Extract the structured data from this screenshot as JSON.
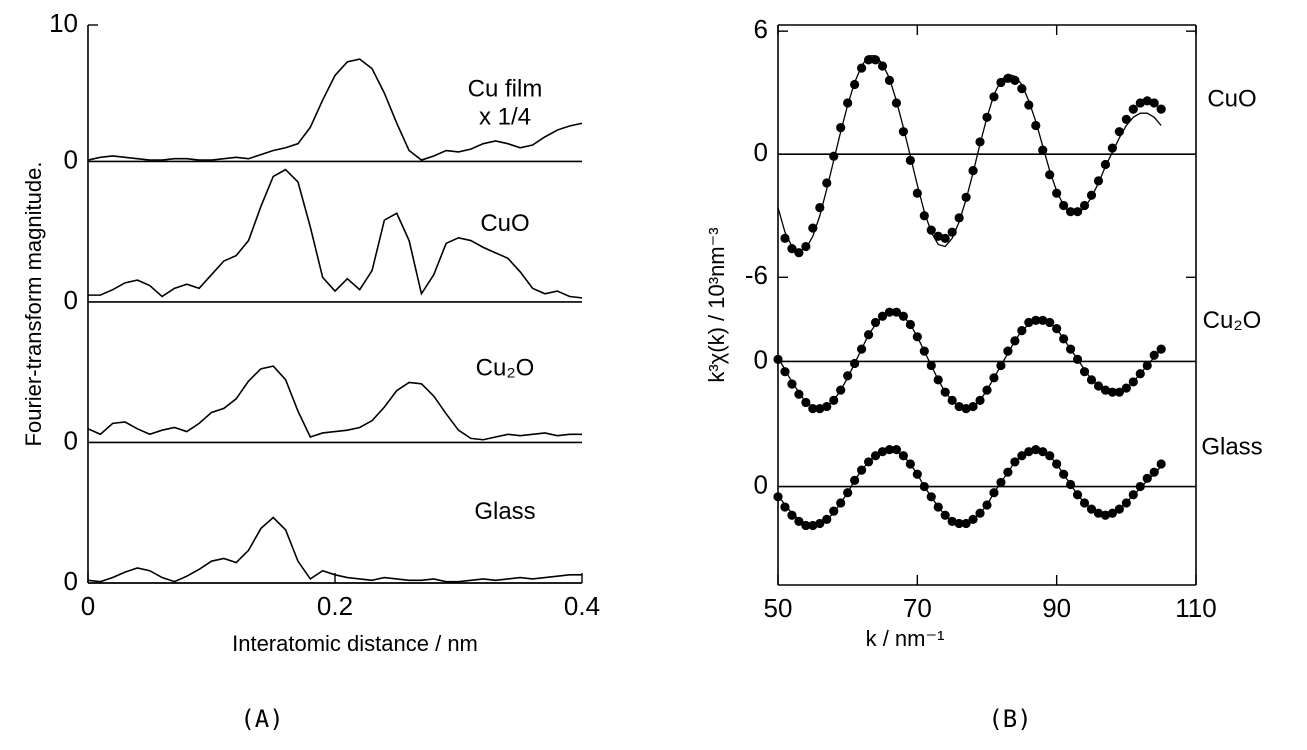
{
  "chart_data": [
    {
      "type": "line",
      "label": "(A)",
      "xlabel": "Interatomic distance / nm",
      "ylabel": "Fourier-transform magnitude.",
      "xlim": [
        0,
        0.4
      ],
      "xticks": [
        0,
        0.2,
        0.4
      ],
      "color": "#000000",
      "x": [
        0,
        0.01,
        0.02,
        0.03,
        0.04,
        0.05,
        0.06,
        0.07,
        0.08,
        0.09,
        0.1,
        0.11,
        0.12,
        0.13,
        0.14,
        0.15,
        0.16,
        0.17,
        0.18,
        0.19,
        0.2,
        0.21,
        0.22,
        0.23,
        0.24,
        0.25,
        0.26,
        0.27,
        0.28,
        0.29,
        0.3,
        0.31,
        0.32,
        0.33,
        0.34,
        0.35,
        0.36,
        0.37,
        0.38,
        0.39,
        0.4
      ],
      "panels": [
        {
          "name": "Cu film",
          "note": "x 1/4",
          "ylim": [
            0,
            10
          ],
          "yticks": [
            0,
            10
          ],
          "values": [
            0.1,
            0.3,
            0.4,
            0.3,
            0.2,
            0.1,
            0.1,
            0.2,
            0.2,
            0.1,
            0.1,
            0.2,
            0.3,
            0.2,
            0.5,
            0.8,
            1.0,
            1.3,
            2.5,
            4.5,
            6.3,
            7.3,
            7.5,
            6.8,
            5.0,
            2.8,
            0.8,
            0.1,
            0.4,
            0.8,
            0.7,
            0.9,
            1.3,
            1.5,
            1.3,
            1.0,
            1.2,
            1.8,
            2.3,
            2.6,
            2.8
          ]
        },
        {
          "name": "CuO",
          "ylim": [
            0,
            10.3
          ],
          "yticks": [
            0
          ],
          "values": [
            0.5,
            0.5,
            0.9,
            1.4,
            1.6,
            1.2,
            0.4,
            1.0,
            1.3,
            1.0,
            2.0,
            3.0,
            3.4,
            4.5,
            7.0,
            9.2,
            9.7,
            8.8,
            5.5,
            1.8,
            0.8,
            1.7,
            0.9,
            2.3,
            6.0,
            6.5,
            4.5,
            0.6,
            2.0,
            4.3,
            4.7,
            4.5,
            4.0,
            3.6,
            3.2,
            2.2,
            1.0,
            0.6,
            0.8,
            0.4,
            0.3
          ]
        },
        {
          "name": "Cu₂O",
          "ylim": [
            0,
            10.3
          ],
          "yticks": [
            0
          ],
          "values": [
            1.0,
            0.6,
            1.4,
            1.5,
            1.0,
            0.6,
            0.9,
            1.1,
            0.8,
            1.4,
            2.2,
            2.5,
            3.2,
            4.5,
            5.4,
            5.6,
            4.6,
            2.3,
            0.4,
            0.7,
            0.8,
            0.9,
            1.1,
            1.6,
            2.6,
            3.8,
            4.4,
            4.3,
            3.4,
            2.1,
            0.9,
            0.3,
            0.2,
            0.4,
            0.6,
            0.5,
            0.6,
            0.7,
            0.5,
            0.6,
            0.6
          ]
        },
        {
          "name": "Glass",
          "ylim": [
            0,
            10.3
          ],
          "yticks": [
            0
          ],
          "values": [
            0.2,
            0.1,
            0.4,
            0.8,
            1.1,
            0.9,
            0.4,
            0.1,
            0.5,
            1.0,
            1.6,
            1.8,
            1.5,
            2.4,
            4.0,
            4.8,
            3.9,
            1.6,
            0.3,
            0.9,
            0.6,
            0.4,
            0.3,
            0.2,
            0.4,
            0.3,
            0.2,
            0.2,
            0.3,
            0.1,
            0.1,
            0.2,
            0.3,
            0.2,
            0.3,
            0.4,
            0.3,
            0.4,
            0.5,
            0.6,
            0.6
          ]
        }
      ]
    },
    {
      "type": "scatter-fit",
      "label": "(B)",
      "xlabel": "k / nm⁻¹",
      "ylabel": "k³χ(k) / 10³nm⁻³",
      "xlim": [
        50,
        110
      ],
      "xticks": [
        50,
        70,
        90,
        110
      ],
      "color": "#000000",
      "x": [
        50,
        51,
        52,
        53,
        54,
        55,
        56,
        57,
        58,
        59,
        60,
        61,
        62,
        63,
        64,
        65,
        66,
        67,
        68,
        69,
        70,
        71,
        72,
        73,
        74,
        75,
        76,
        77,
        78,
        79,
        80,
        81,
        82,
        83,
        84,
        85,
        86,
        87,
        88,
        89,
        90,
        91,
        92,
        93,
        94,
        95,
        96,
        97,
        98,
        99,
        100,
        101,
        102,
        103,
        104,
        105
      ],
      "panels": [
        {
          "name": "CuO",
          "ylim": [
            -7,
            6.3
          ],
          "yticks": [
            -6,
            0,
            6
          ],
          "points": [
            null,
            -4.1,
            -4.6,
            -4.8,
            -4.5,
            -3.6,
            -2.6,
            -1.4,
            -0.1,
            1.3,
            2.5,
            3.4,
            4.2,
            4.6,
            4.6,
            4.3,
            3.6,
            2.5,
            1.1,
            -0.3,
            -1.9,
            -3.0,
            -3.7,
            -4.0,
            -4.1,
            -3.8,
            -3.1,
            -2.1,
            -0.8,
            0.6,
            1.8,
            2.8,
            3.5,
            3.7,
            3.6,
            3.2,
            2.4,
            1.4,
            0.2,
            -1.0,
            -1.9,
            -2.5,
            -2.8,
            -2.8,
            -2.5,
            -2.0,
            -1.3,
            -0.5,
            0.3,
            1.1,
            1.7,
            2.2,
            2.5,
            2.6,
            2.5,
            2.2
          ],
          "fit": [
            -2.6,
            -3.8,
            -4.5,
            -4.7,
            -4.6,
            -4.0,
            -3.0,
            -1.7,
            -0.3,
            1.1,
            2.4,
            3.5,
            4.3,
            4.8,
            4.8,
            4.4,
            3.7,
            2.6,
            1.3,
            -0.1,
            -1.5,
            -2.8,
            -3.8,
            -4.4,
            -4.5,
            -4.1,
            -3.3,
            -2.2,
            -0.9,
            0.5,
            1.8,
            2.9,
            3.6,
            3.9,
            3.8,
            3.4,
            2.6,
            1.6,
            0.4,
            -0.8,
            -1.8,
            -2.5,
            -2.9,
            -2.9,
            -2.6,
            -2.1,
            -1.4,
            -0.6,
            0.1,
            0.8,
            1.4,
            1.8,
            2.0,
            2.0,
            1.8,
            1.4
          ]
        },
        {
          "name": "Cu₂O",
          "ylim": [
            -3,
            3.1
          ],
          "yticks": [
            0
          ],
          "points": [
            0.1,
            -0.5,
            -1.1,
            -1.6,
            -2.0,
            -2.3,
            -2.3,
            -2.2,
            -1.9,
            -1.4,
            -0.7,
            -0.1,
            0.6,
            1.3,
            1.9,
            2.2,
            2.4,
            2.4,
            2.2,
            1.8,
            1.2,
            0.5,
            -0.2,
            -0.9,
            -1.5,
            -1.9,
            -2.2,
            -2.3,
            -2.2,
            -1.9,
            -1.4,
            -0.8,
            -0.2,
            0.5,
            1.0,
            1.5,
            1.9,
            2.0,
            2.0,
            1.9,
            1.6,
            1.1,
            0.6,
            0.1,
            -0.5,
            -0.9,
            -1.2,
            -1.4,
            -1.5,
            -1.5,
            -1.3,
            -1.0,
            -0.6,
            -0.2,
            0.3,
            0.6
          ],
          "fit": [
            0.2,
            -0.4,
            -1.0,
            -1.5,
            -2.0,
            -2.2,
            -2.3,
            -2.2,
            -1.9,
            -1.4,
            -0.8,
            -0.1,
            0.6,
            1.3,
            1.8,
            2.2,
            2.4,
            2.4,
            2.2,
            1.8,
            1.2,
            0.5,
            -0.2,
            -0.9,
            -1.5,
            -1.9,
            -2.2,
            -2.2,
            -2.2,
            -1.9,
            -1.4,
            -0.8,
            -0.2,
            0.4,
            1.0,
            1.5,
            1.8,
            2.0,
            2.0,
            1.9,
            1.6,
            1.1,
            0.6,
            0.1,
            -0.4,
            -0.9,
            -1.2,
            -1.4,
            -1.5,
            -1.5,
            -1.3,
            -1.0,
            -0.6,
            -0.2,
            0.2,
            0.6
          ]
        },
        {
          "name": "Glass",
          "ylim": [
            -4.8,
            3.1
          ],
          "yticks": [
            0
          ],
          "points": [
            -0.5,
            -1.0,
            -1.4,
            -1.7,
            -1.9,
            -1.9,
            -1.8,
            -1.6,
            -1.2,
            -0.8,
            -0.3,
            0.3,
            0.8,
            1.2,
            1.5,
            1.7,
            1.8,
            1.8,
            1.5,
            1.1,
            0.6,
            0.0,
            -0.5,
            -1.0,
            -1.4,
            -1.7,
            -1.8,
            -1.8,
            -1.6,
            -1.3,
            -0.9,
            -0.3,
            0.2,
            0.7,
            1.2,
            1.5,
            1.7,
            1.8,
            1.7,
            1.5,
            1.1,
            0.6,
            0.1,
            -0.4,
            -0.8,
            -1.1,
            -1.3,
            -1.4,
            -1.3,
            -1.1,
            -0.8,
            -0.4,
            0.0,
            0.4,
            0.7,
            1.1
          ],
          "fit": [
            -0.4,
            -0.9,
            -1.3,
            -1.6,
            -1.8,
            -1.9,
            -1.8,
            -1.6,
            -1.3,
            -0.8,
            -0.3,
            0.3,
            0.8,
            1.2,
            1.5,
            1.7,
            1.8,
            1.7,
            1.5,
            1.1,
            0.6,
            0.0,
            -0.5,
            -1.0,
            -1.4,
            -1.7,
            -1.8,
            -1.8,
            -1.6,
            -1.3,
            -0.9,
            -0.3,
            0.2,
            0.7,
            1.2,
            1.5,
            1.7,
            1.8,
            1.7,
            1.5,
            1.1,
            0.6,
            0.1,
            -0.4,
            -0.8,
            -1.1,
            -1.3,
            -1.3,
            -1.3,
            -1.1,
            -0.8,
            -0.4,
            -0.1,
            0.3,
            0.6,
            1.0
          ]
        }
      ]
    }
  ]
}
